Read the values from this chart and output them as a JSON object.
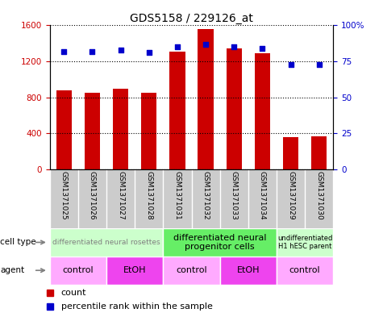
{
  "title": "GDS5158 / 229126_at",
  "samples": [
    "GSM1371025",
    "GSM1371026",
    "GSM1371027",
    "GSM1371028",
    "GSM1371031",
    "GSM1371032",
    "GSM1371033",
    "GSM1371034",
    "GSM1371029",
    "GSM1371030"
  ],
  "counts": [
    880,
    855,
    900,
    855,
    1310,
    1560,
    1340,
    1290,
    360,
    370
  ],
  "percentiles": [
    82,
    82,
    83,
    81,
    85,
    87,
    85,
    84,
    73,
    73
  ],
  "ylim_left": [
    0,
    1600
  ],
  "ylim_right": [
    0,
    100
  ],
  "yticks_left": [
    0,
    400,
    800,
    1200,
    1600
  ],
  "yticks_right": [
    0,
    25,
    50,
    75,
    100
  ],
  "bar_color": "#cc0000",
  "dot_color": "#0000cc",
  "cell_type_groups": [
    {
      "label": "differentiated neural rosettes",
      "start": 0,
      "end": 4,
      "color": "#ccffcc",
      "fontsize": 6.5,
      "gray": true
    },
    {
      "label": "differentiated neural\nprogenitor cells",
      "start": 4,
      "end": 8,
      "color": "#66ee66",
      "fontsize": 8,
      "gray": false
    },
    {
      "label": "undifferentiated\nH1 hESC parent",
      "start": 8,
      "end": 10,
      "color": "#ccffcc",
      "fontsize": 6,
      "gray": false
    }
  ],
  "agent_groups": [
    {
      "label": "control",
      "start": 0,
      "end": 2,
      "color": "#ffaaff"
    },
    {
      "label": "EtOH",
      "start": 2,
      "end": 4,
      "color": "#ee44ee"
    },
    {
      "label": "control",
      "start": 4,
      "end": 6,
      "color": "#ffaaff"
    },
    {
      "label": "EtOH",
      "start": 6,
      "end": 8,
      "color": "#ee44ee"
    },
    {
      "label": "control",
      "start": 8,
      "end": 10,
      "color": "#ffaaff"
    }
  ],
  "left_axis_color": "#cc0000",
  "right_axis_color": "#0000cc",
  "bar_color_legend": "#cc0000",
  "dot_color_legend": "#0000cc",
  "bar_width": 0.55,
  "xlabel_gray": "#aaaaaa",
  "sample_area_color": "#cccccc"
}
